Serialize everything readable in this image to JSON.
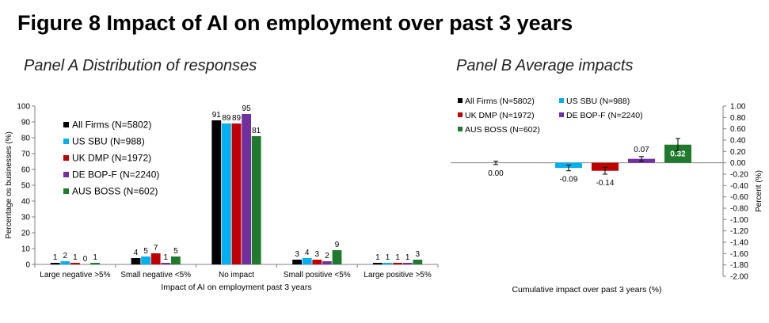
{
  "figure_title": "Figure 8 Impact of AI on employment over past 3 years",
  "panel_a_title": "Panel A Distribution of responses",
  "panel_b_title": "Panel B Average impacts",
  "colors": {
    "All Firms": "#000000",
    "US SBU": "#00b0f0",
    "UK DMP": "#c00000",
    "DE BOP-F": "#7030a0",
    "AUS BOSS": "#1f7a2e"
  },
  "chart_data": [
    {
      "type": "bar",
      "title": "Panel A Distribution of responses",
      "xlabel": "Impact of AI on employment past 3 years",
      "ylabel": "Percentage os businesses (%)",
      "ylim": [
        0,
        100
      ],
      "yticks": [
        0,
        10,
        20,
        30,
        40,
        50,
        60,
        70,
        80,
        90,
        100
      ],
      "grid": false,
      "legend_position": "left",
      "categories": [
        "Large negative >5%",
        "Small negative <5%",
        "No impact",
        "Small positive <5%",
        "Large positive >5%"
      ],
      "series": [
        {
          "name": "All Firms (N=5802)",
          "values": [
            1,
            4,
            91,
            3,
            1
          ],
          "labels": [
            "1",
            "4",
            "91",
            "3",
            "1"
          ]
        },
        {
          "name": "US SBU (N=988)",
          "values": [
            2,
            5,
            89,
            4,
            1
          ],
          "labels": [
            "2",
            "5",
            "89",
            "4",
            "1"
          ]
        },
        {
          "name": "UK DMP (N=1972)",
          "values": [
            1,
            7,
            89,
            3,
            1
          ],
          "labels": [
            "1",
            "7",
            "89",
            "3",
            "1"
          ]
        },
        {
          "name": "DE BOP-F (N=2240)",
          "values": [
            0,
            1,
            95,
            2,
            1
          ],
          "labels": [
            "0",
            "1",
            "95",
            "2",
            "1"
          ]
        },
        {
          "name": "AUS BOSS (N=602)",
          "values": [
            1,
            5,
            81,
            9,
            3
          ],
          "labels": [
            "1",
            "5",
            "81",
            "9",
            "3"
          ]
        }
      ]
    },
    {
      "type": "bar",
      "title": "Panel B Average impacts",
      "xlabel": "Cumulative impact over past 3 years (%)",
      "ylabel": "Percent (%)",
      "ylim": [
        -2.0,
        1.0
      ],
      "yticks": [
        "1.00",
        "0.80",
        "0.60",
        "0.40",
        "0.20",
        "0.00",
        "-0.20",
        "-0.40",
        "-0.60",
        "-0.80",
        "-1.00",
        "-1.20",
        "-1.40",
        "-1.60",
        "-1.80",
        "-2.00"
      ],
      "axis_side": "right",
      "grid": false,
      "legend_position": "top-left",
      "series": [
        {
          "name": "All Firms (N=5802)",
          "value": 0.0,
          "label": "0.00",
          "error": 0.03
        },
        {
          "name": "US SBU (N=988)",
          "value": -0.09,
          "label": "-0.09",
          "error": 0.05
        },
        {
          "name": "UK DMP (N=1972)",
          "value": -0.14,
          "label": "-0.14",
          "error": 0.06
        },
        {
          "name": "DE BOP-F (N=2240)",
          "value": 0.07,
          "label": "0.07",
          "error": 0.04
        },
        {
          "name": "AUS BOSS (N=602)",
          "value": 0.32,
          "label": "0.32",
          "error": 0.11
        }
      ]
    }
  ]
}
